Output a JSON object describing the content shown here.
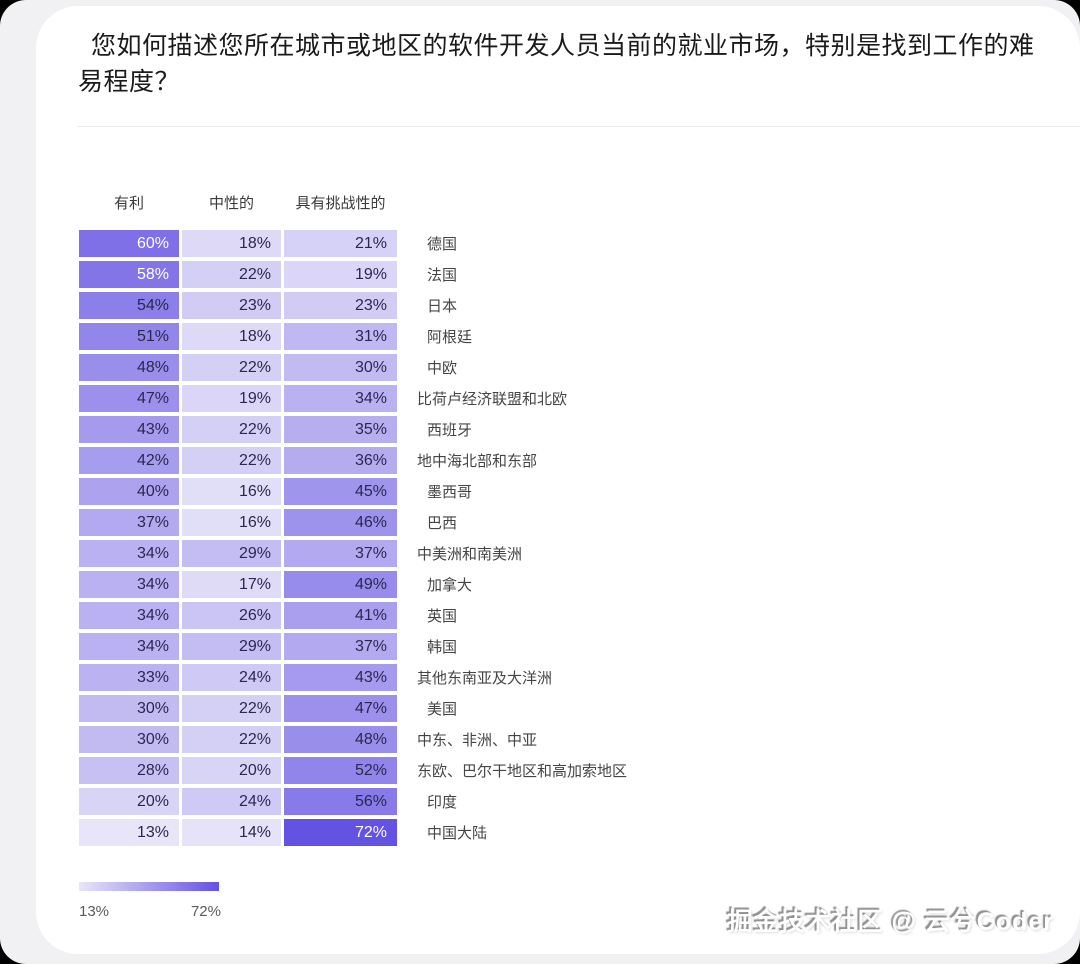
{
  "page": {
    "watermark": "掘金技术社区 @ 云兮Coder"
  },
  "chart_data": {
    "type": "heatmap",
    "title": "您如何描述您所在城市或地区的软件开发人员当前的就业市场，特别是找到工作的难易程度？",
    "columns": [
      "有利",
      "中性的",
      "具有挑战性的"
    ],
    "unit": "%",
    "rows": [
      {
        "label": "德国",
        "indent": true,
        "values": [
          60,
          18,
          21
        ]
      },
      {
        "label": "法国",
        "indent": true,
        "values": [
          58,
          22,
          19
        ]
      },
      {
        "label": "日本",
        "indent": true,
        "values": [
          54,
          23,
          23
        ]
      },
      {
        "label": "阿根廷",
        "indent": true,
        "values": [
          51,
          18,
          31
        ]
      },
      {
        "label": "中欧",
        "indent": true,
        "values": [
          48,
          22,
          30
        ]
      },
      {
        "label": "比荷卢经济联盟和北欧",
        "indent": false,
        "values": [
          47,
          19,
          34
        ]
      },
      {
        "label": "西班牙",
        "indent": true,
        "values": [
          43,
          22,
          35
        ]
      },
      {
        "label": "地中海北部和东部",
        "indent": false,
        "values": [
          42,
          22,
          36
        ]
      },
      {
        "label": "墨西哥",
        "indent": true,
        "values": [
          40,
          16,
          45
        ]
      },
      {
        "label": "巴西",
        "indent": true,
        "values": [
          37,
          16,
          46
        ]
      },
      {
        "label": "中美洲和南美洲",
        "indent": false,
        "values": [
          34,
          29,
          37
        ]
      },
      {
        "label": "加拿大",
        "indent": true,
        "values": [
          34,
          17,
          49
        ]
      },
      {
        "label": "英国",
        "indent": true,
        "values": [
          34,
          26,
          41
        ]
      },
      {
        "label": "韩国",
        "indent": true,
        "values": [
          34,
          29,
          37
        ]
      },
      {
        "label": "其他东南亚及大洋洲",
        "indent": false,
        "values": [
          33,
          24,
          43
        ]
      },
      {
        "label": "美国",
        "indent": true,
        "values": [
          30,
          22,
          47
        ]
      },
      {
        "label": "中东、非洲、中亚",
        "indent": false,
        "values": [
          30,
          22,
          48
        ]
      },
      {
        "label": "东欧、巴尔干地区和高加索地区",
        "indent": false,
        "values": [
          28,
          20,
          52
        ]
      },
      {
        "label": "印度",
        "indent": true,
        "values": [
          20,
          24,
          56
        ]
      },
      {
        "label": "中国大陆",
        "indent": true,
        "values": [
          13,
          14,
          72
        ]
      }
    ],
    "color_scale": {
      "min_value": 13,
      "max_value": 72,
      "min_color": "#e8e5f9",
      "max_color": "#6452e2",
      "light_text_threshold": 58
    },
    "legend": {
      "min_label": "13%",
      "max_label": "72%"
    }
  }
}
